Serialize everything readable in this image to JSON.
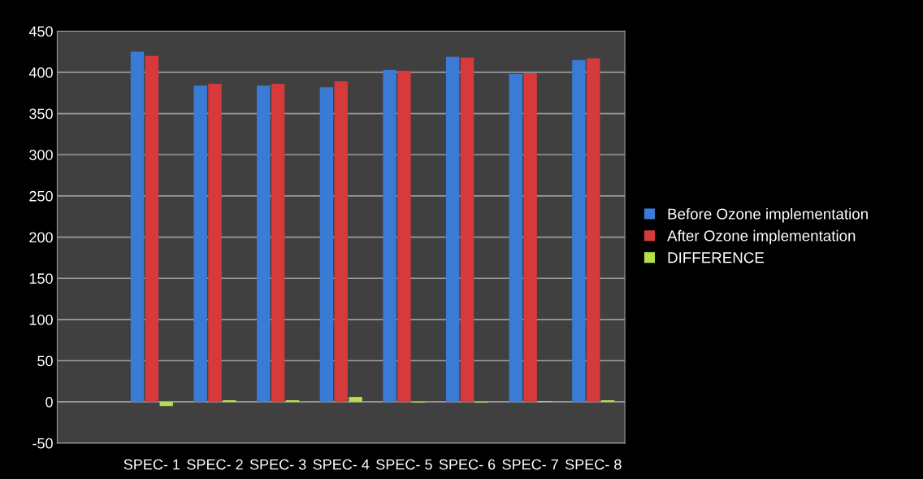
{
  "chart_data": {
    "type": "bar",
    "categories": [
      null,
      "SPEC- 1",
      "SPEC- 2",
      "SPEC- 3",
      "SPEC- 4",
      "SPEC- 5",
      "SPEC- 6",
      "SPEC- 7",
      "SPEC- 8"
    ],
    "series": [
      {
        "name": "Before Ozone implementation",
        "color": "#3a7bd5",
        "values": [
          null,
          425,
          384,
          384,
          382,
          403,
          419,
          398,
          415
        ]
      },
      {
        "name": "After Ozone implementation",
        "color": "#d63a3a",
        "values": [
          null,
          420,
          386,
          386,
          389,
          402,
          418,
          399,
          417
        ]
      },
      {
        "name": "DIFFERENCE",
        "color": "#b5e04a",
        "values": [
          null,
          -5,
          2,
          2,
          6,
          -1,
          -1,
          1,
          2
        ]
      }
    ],
    "ylim": [
      -50,
      450
    ],
    "yticks": [
      -50,
      0,
      50,
      100,
      150,
      200,
      250,
      300,
      350,
      400,
      450
    ],
    "grid": "y",
    "legend": "right"
  }
}
